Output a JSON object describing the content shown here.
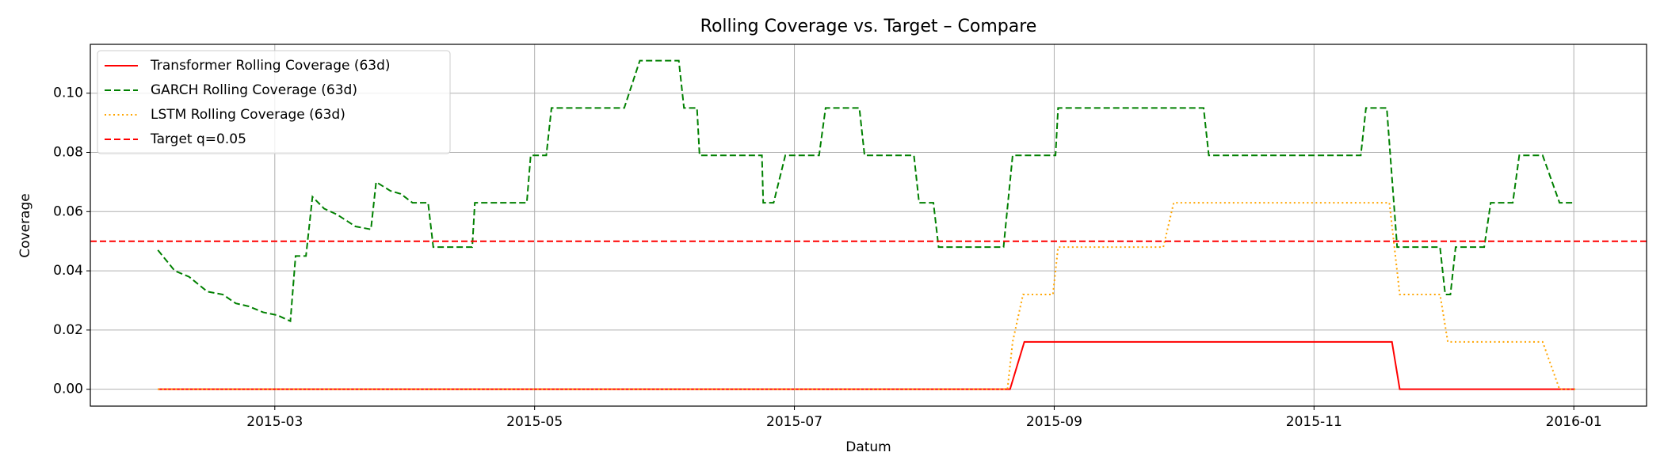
{
  "chart_data": {
    "type": "line",
    "title": "Rolling Coverage vs. Target – Compare",
    "xlabel": "Datum",
    "ylabel": "Coverage",
    "xlim": [
      1.58,
      13.56
    ],
    "xticks": [
      {
        "value": 3,
        "label": "2015-03"
      },
      {
        "value": 5,
        "label": "2015-05"
      },
      {
        "value": 7,
        "label": "2015-07"
      },
      {
        "value": 9,
        "label": "2015-09"
      },
      {
        "value": 11,
        "label": "2015-11"
      },
      {
        "value": 13,
        "label": "2016-01"
      }
    ],
    "ylim": [
      -0.0057,
      0.1165
    ],
    "yticks": [
      {
        "value": 0,
        "label": "0.00"
      },
      {
        "value": 0.02,
        "label": "0.02"
      },
      {
        "value": 0.04,
        "label": "0.04"
      },
      {
        "value": 0.06,
        "label": "0.06"
      },
      {
        "value": 0.08,
        "label": "0.08"
      },
      {
        "value": 0.1,
        "label": "0.10"
      }
    ],
    "grid": true,
    "legend": "upper left",
    "series": [
      {
        "name": "Transformer Rolling Coverage (63d)",
        "color": "#ff0000",
        "linestyle": "solid",
        "x": [
          2.1,
          8.66,
          8.77,
          11.6,
          11.66,
          13.01
        ],
        "values": [
          0,
          0,
          0.016,
          0.016,
          0,
          0
        ]
      },
      {
        "name": "GARCH Rolling Coverage (63d)",
        "color": "#008000",
        "linestyle": "dashed",
        "x": [
          2.1,
          2.23,
          2.34,
          2.48,
          2.6,
          2.7,
          2.8,
          2.91,
          3.02,
          3.12,
          3.16,
          3.24,
          3.29,
          3.38,
          3.48,
          3.62,
          3.74,
          3.78,
          3.89,
          3.97,
          4.06,
          4.18,
          4.22,
          4.52,
          4.54,
          4.94,
          4.97,
          5.09,
          5.13,
          5.69,
          5.81,
          6.11,
          6.15,
          6.25,
          6.27,
          6.75,
          6.76,
          6.84,
          6.93,
          7.19,
          7.24,
          7.5,
          7.54,
          7.92,
          7.96,
          8.07,
          8.11,
          8.61,
          8.68,
          9.01,
          9.03,
          10.15,
          10.19,
          11.36,
          11.4,
          11.56,
          11.64,
          11.97,
          12.01,
          12.05,
          12.09,
          12.31,
          12.36,
          12.53,
          12.58,
          12.76,
          12.89,
          13.01
        ],
        "values": [
          0.047,
          0.04,
          0.038,
          0.033,
          0.032,
          0.029,
          0.028,
          0.026,
          0.025,
          0.023,
          0.045,
          0.045,
          0.065,
          0.061,
          0.059,
          0.055,
          0.054,
          0.07,
          0.067,
          0.066,
          0.063,
          0.063,
          0.048,
          0.048,
          0.063,
          0.063,
          0.079,
          0.079,
          0.095,
          0.095,
          0.111,
          0.111,
          0.095,
          0.095,
          0.079,
          0.079,
          0.063,
          0.063,
          0.079,
          0.079,
          0.095,
          0.095,
          0.079,
          0.079,
          0.063,
          0.063,
          0.048,
          0.048,
          0.079,
          0.079,
          0.095,
          0.095,
          0.079,
          0.079,
          0.095,
          0.095,
          0.048,
          0.048,
          0.032,
          0.032,
          0.048,
          0.048,
          0.063,
          0.063,
          0.079,
          0.079,
          0.063,
          0.063
        ]
      },
      {
        "name": "LSTM Rolling Coverage (63d)",
        "color": "#ffa500",
        "linestyle": "dotted",
        "x": [
          2.1,
          8.64,
          8.68,
          8.76,
          8.99,
          9.03,
          9.84,
          9.92,
          11.58,
          11.66,
          11.97,
          12.03,
          12.76,
          12.89,
          13.01
        ],
        "values": [
          0,
          0,
          0.016,
          0.032,
          0.032,
          0.048,
          0.048,
          0.063,
          0.063,
          0.032,
          0.032,
          0.016,
          0.016,
          0,
          0
        ]
      }
    ],
    "hlines": [
      {
        "name": "Target q=0.05",
        "value": 0.05,
        "color": "#ff0000",
        "linestyle": "dashed"
      }
    ]
  }
}
